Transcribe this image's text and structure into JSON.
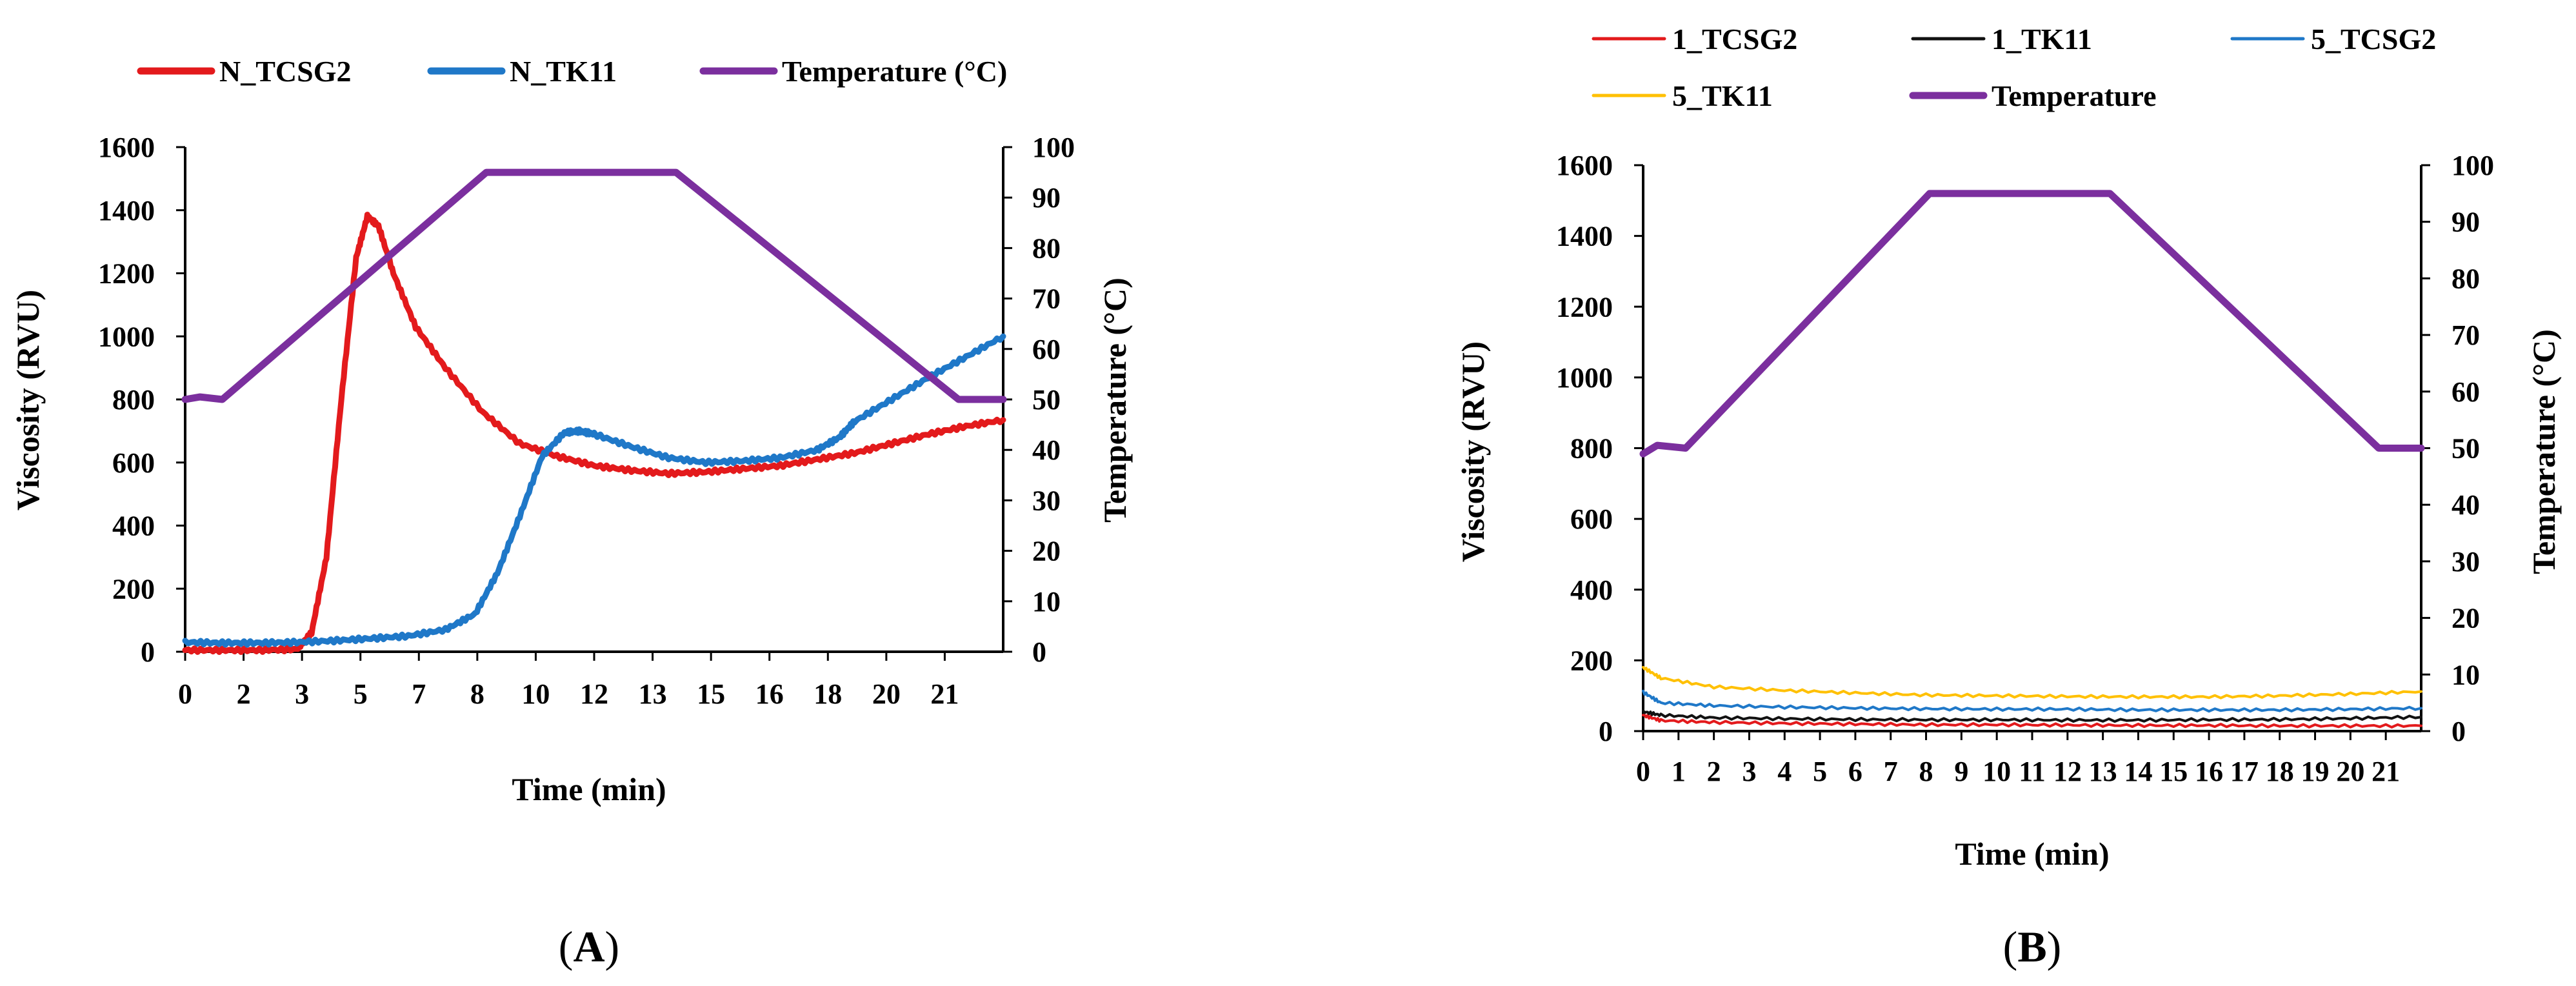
{
  "chart_data": [
    {
      "panel": "A",
      "type": "line",
      "label_prefix": "(",
      "label_letter": "A",
      "label_suffix": ")",
      "xlabel": "Time (min)",
      "ylabel_left": "Viscosity (RVU)",
      "ylabel_right": "Temperature (°C)",
      "ylim_left": [
        0,
        1600
      ],
      "ylim_right": [
        0,
        100
      ],
      "x_tick_labels": [
        "0",
        "2",
        "3",
        "5",
        "7",
        "8",
        "10",
        "12",
        "13",
        "15",
        "16",
        "18",
        "20",
        "21"
      ],
      "y_left_ticks": [
        0,
        200,
        400,
        600,
        800,
        1000,
        1200,
        1400,
        1600
      ],
      "y_right_ticks": [
        0,
        10,
        20,
        30,
        40,
        50,
        60,
        70,
        80,
        90,
        100
      ],
      "series": [
        {
          "name": "N_TCSG2",
          "color": "#e31a1c",
          "axis": "left",
          "width": 9,
          "points": [
            [
              0,
              5
            ],
            [
              1,
              5
            ],
            [
              2,
              5
            ],
            [
              3,
              8
            ],
            [
              3.4,
              60
            ],
            [
              3.8,
              300
            ],
            [
              4.2,
              800
            ],
            [
              4.6,
              1250
            ],
            [
              4.9,
              1380
            ],
            [
              5.2,
              1350
            ],
            [
              5.6,
              1200
            ],
            [
              6.2,
              1030
            ],
            [
              7,
              900
            ],
            [
              8,
              760
            ],
            [
              9,
              660
            ],
            [
              10,
              620
            ],
            [
              11,
              590
            ],
            [
              12,
              575
            ],
            [
              13,
              565
            ],
            [
              14,
              570
            ],
            [
              15,
              580
            ],
            [
              16,
              590
            ],
            [
              17,
              610
            ],
            [
              18,
              630
            ],
            [
              19,
              660
            ],
            [
              20,
              690
            ],
            [
              21,
              715
            ],
            [
              22,
              735
            ]
          ]
        },
        {
          "name": "N_TK11",
          "color": "#1f78c8",
          "axis": "left",
          "width": 9,
          "points": [
            [
              0,
              30
            ],
            [
              1,
              28
            ],
            [
              2,
              28
            ],
            [
              3,
              30
            ],
            [
              4,
              35
            ],
            [
              5,
              42
            ],
            [
              6,
              50
            ],
            [
              7,
              70
            ],
            [
              7.8,
              120
            ],
            [
              8.4,
              250
            ],
            [
              9,
              430
            ],
            [
              9.6,
              620
            ],
            [
              10.2,
              695
            ],
            [
              10.6,
              700
            ],
            [
              11,
              690
            ],
            [
              12,
              650
            ],
            [
              13,
              615
            ],
            [
              14,
              600
            ],
            [
              15,
              605
            ],
            [
              16,
              615
            ],
            [
              17,
              640
            ],
            [
              17.6,
              680
            ],
            [
              18,
              730
            ],
            [
              19,
              800
            ],
            [
              20,
              870
            ],
            [
              21,
              935
            ],
            [
              22,
              1000
            ]
          ]
        },
        {
          "name": "Temperature (°C)",
          "color": "#7b2f9e",
          "axis": "right",
          "width": 11,
          "points": [
            [
              0,
              50
            ],
            [
              0.4,
              50.5
            ],
            [
              1,
              50
            ],
            [
              8.1,
              95
            ],
            [
              13.2,
              95
            ],
            [
              20.8,
              50
            ],
            [
              22,
              50
            ]
          ]
        }
      ]
    },
    {
      "panel": "B",
      "type": "line",
      "label_prefix": "(",
      "label_letter": "B",
      "label_suffix": ")",
      "xlabel": "Time (min)",
      "ylabel_left": "Viscosity (RVU)",
      "ylabel_right": "Temperature (°C)",
      "ylim_left": [
        0,
        1600
      ],
      "ylim_right": [
        0,
        100
      ],
      "x_tick_labels": [
        "0",
        "1",
        "2",
        "3",
        "4",
        "5",
        "6",
        "7",
        "8",
        "9",
        "10",
        "11",
        "12",
        "13",
        "14",
        "15",
        "16",
        "17",
        "18",
        "19",
        "20",
        "21"
      ],
      "y_left_ticks": [
        0,
        200,
        400,
        600,
        800,
        1000,
        1200,
        1400,
        1600
      ],
      "y_right_ticks": [
        0,
        10,
        20,
        30,
        40,
        50,
        60,
        70,
        80,
        90,
        100
      ],
      "series": [
        {
          "name": "1_TCSG2",
          "color": "#e31a1c",
          "axis": "left",
          "width": 4,
          "points": [
            [
              0,
              45
            ],
            [
              0.5,
              30
            ],
            [
              2,
              25
            ],
            [
              4,
              22
            ],
            [
              6,
              20
            ],
            [
              8,
              18
            ],
            [
              10,
              18
            ],
            [
              12,
              17
            ],
            [
              14,
              16
            ],
            [
              16,
              16
            ],
            [
              18,
              15
            ],
            [
              20,
              15
            ],
            [
              22,
              15
            ]
          ]
        },
        {
          "name": "1_TK11",
          "color": "#111111",
          "axis": "left",
          "width": 4,
          "points": [
            [
              0,
              55
            ],
            [
              0.5,
              45
            ],
            [
              2,
              38
            ],
            [
              4,
              35
            ],
            [
              6,
              33
            ],
            [
              8,
              32
            ],
            [
              10,
              32
            ],
            [
              12,
              31
            ],
            [
              14,
              31
            ],
            [
              16,
              32
            ],
            [
              18,
              33
            ],
            [
              20,
              36
            ],
            [
              22,
              40
            ]
          ]
        },
        {
          "name": "5_TCSG2",
          "color": "#1f78c8",
          "axis": "left",
          "width": 4,
          "points": [
            [
              0,
              110
            ],
            [
              0.5,
              80
            ],
            [
              2,
              72
            ],
            [
              4,
              68
            ],
            [
              6,
              65
            ],
            [
              8,
              63
            ],
            [
              10,
              62
            ],
            [
              12,
              62
            ],
            [
              14,
              60
            ],
            [
              16,
              60
            ],
            [
              18,
              60
            ],
            [
              20,
              62
            ],
            [
              22,
              65
            ]
          ]
        },
        {
          "name": "5_TK11",
          "color": "#ffc000",
          "axis": "left",
          "width": 4,
          "points": [
            [
              0,
              180
            ],
            [
              0.5,
              150
            ],
            [
              2,
              125
            ],
            [
              4,
              115
            ],
            [
              6,
              108
            ],
            [
              8,
              102
            ],
            [
              10,
              100
            ],
            [
              12,
              98
            ],
            [
              14,
              97
            ],
            [
              16,
              97
            ],
            [
              18,
              100
            ],
            [
              20,
              105
            ],
            [
              22,
              112
            ]
          ]
        },
        {
          "name": "Temperature",
          "color": "#7b2f9e",
          "axis": "right",
          "width": 11,
          "points": [
            [
              0,
              49
            ],
            [
              0.4,
              50.5
            ],
            [
              1.2,
              50
            ],
            [
              8.1,
              95
            ],
            [
              13.2,
              95
            ],
            [
              20.8,
              50
            ],
            [
              22,
              50
            ]
          ]
        }
      ]
    }
  ]
}
